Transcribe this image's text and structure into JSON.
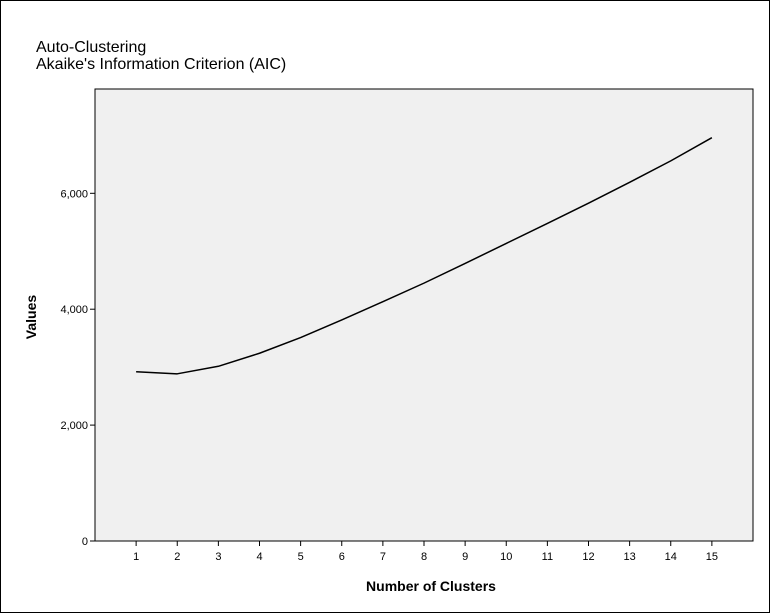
{
  "chart_data": {
    "type": "line",
    "title": "Auto-Clustering",
    "subtitle": "Akaike's Information Criterion (AIC)",
    "xlabel": "Number of Clusters",
    "ylabel": "Values",
    "x": [
      1,
      2,
      3,
      4,
      5,
      6,
      7,
      8,
      9,
      10,
      11,
      12,
      13,
      14,
      15
    ],
    "series": [
      {
        "values": [
          2920,
          2885,
          3015,
          3240,
          3510,
          3815,
          4130,
          4450,
          4790,
          5135,
          5480,
          5830,
          6190,
          6560,
          6960
        ]
      }
    ],
    "yticks": [
      0,
      2000,
      4000,
      6000
    ],
    "ytick_labels": [
      "0",
      "2,000",
      "4,000",
      "6,000"
    ],
    "xlim": [
      0,
      16
    ],
    "ylim": [
      0,
      7800
    ],
    "grid": false,
    "colors": {
      "plot_background": "#f0f0f0",
      "line": "#000000"
    }
  }
}
